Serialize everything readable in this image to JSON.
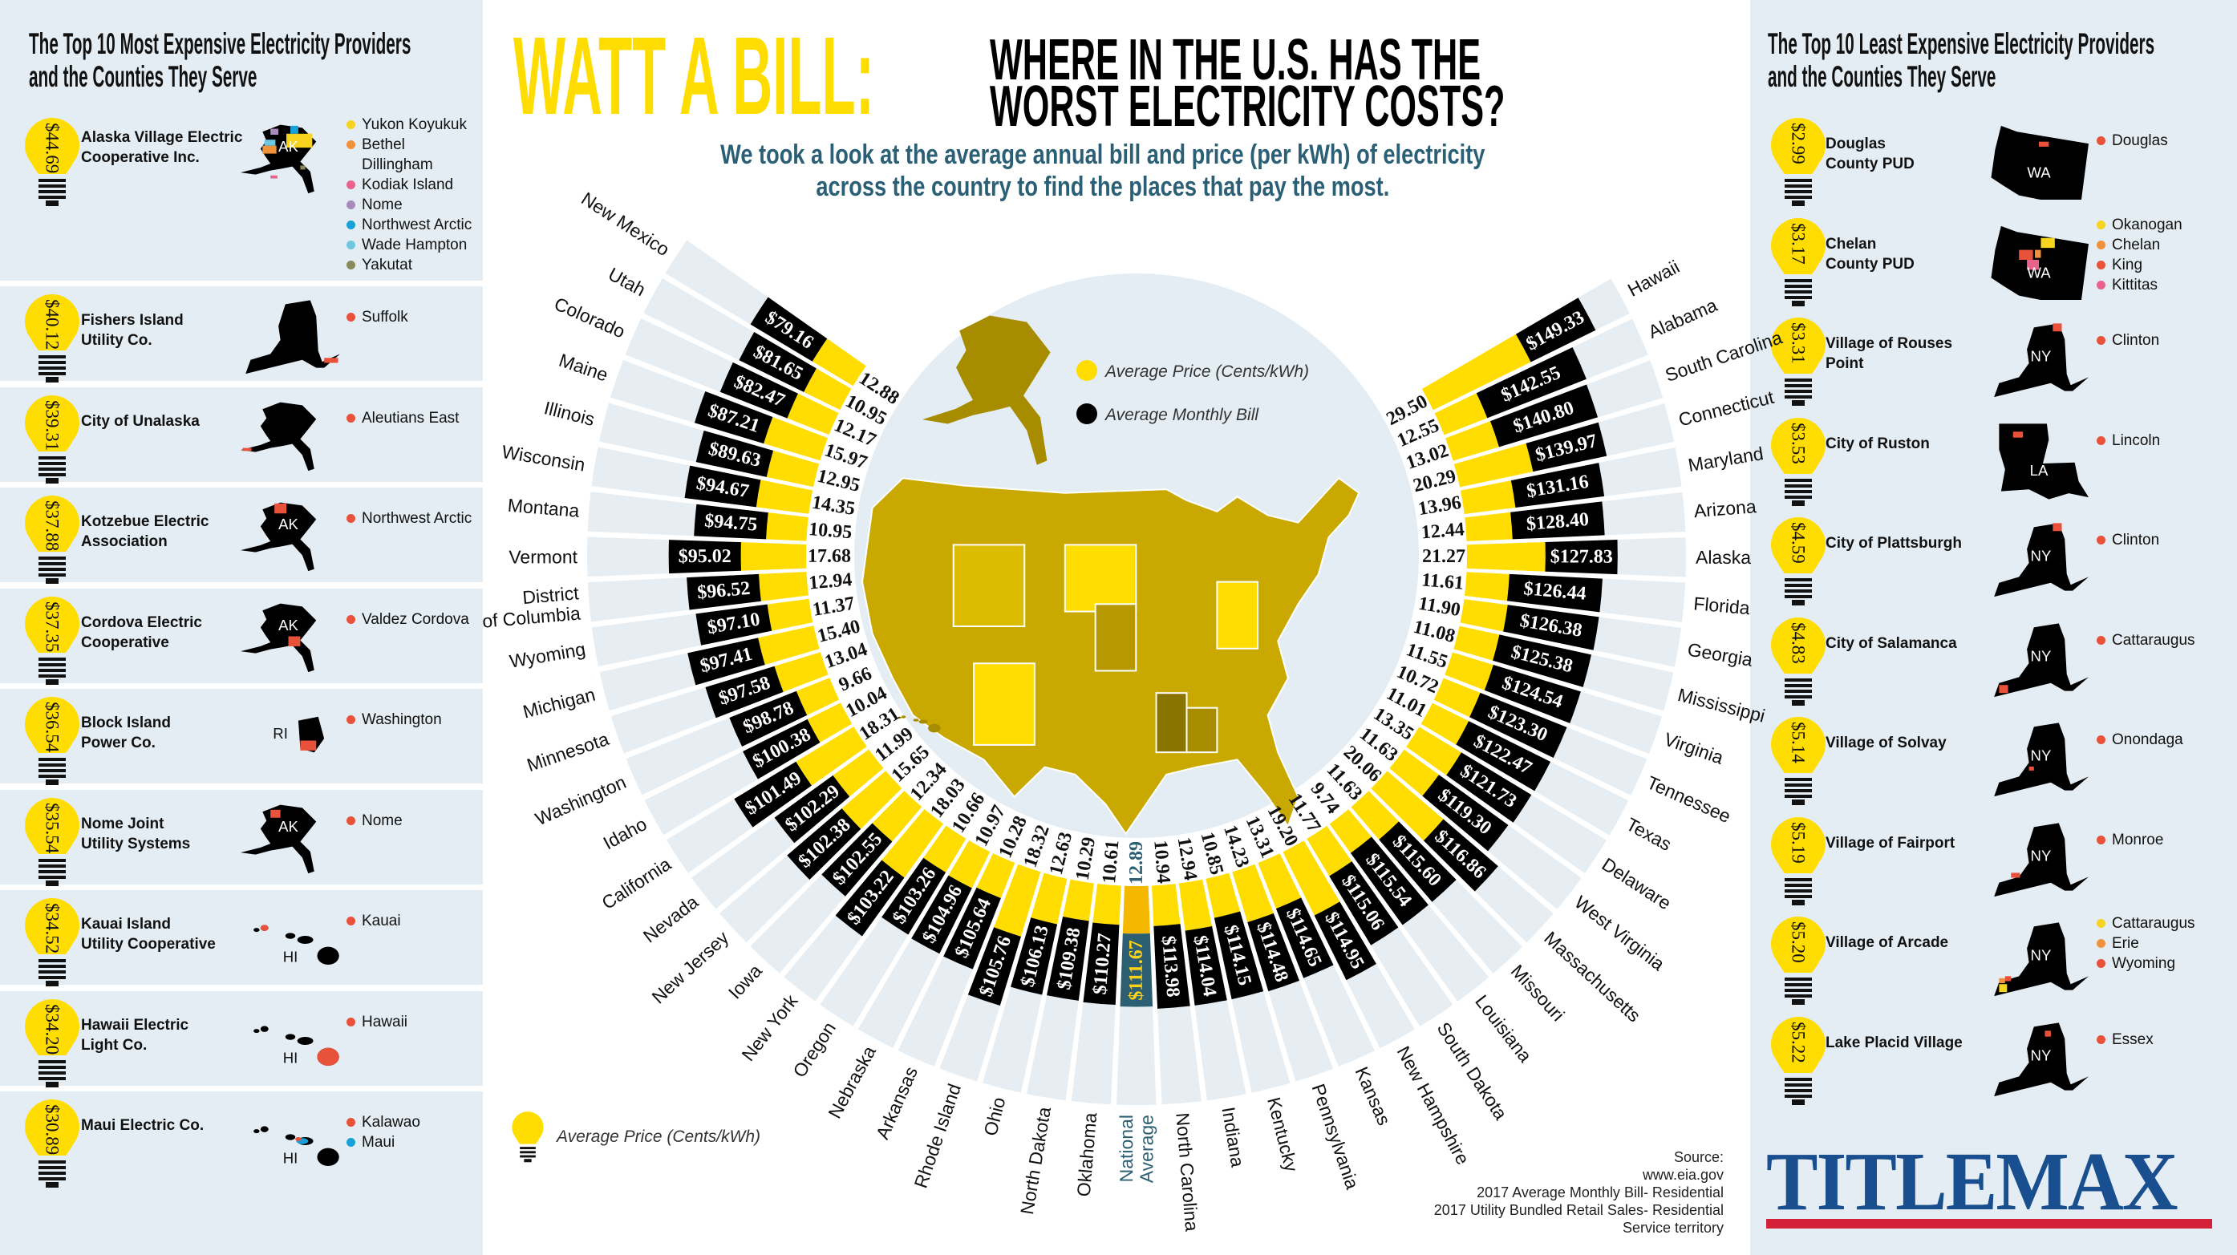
{
  "header": {
    "title_highlight": "WATT A BILL:",
    "title_line1": "WHERE IN THE U.S. HAS THE",
    "title_line2": "WORST ELECTRICITY COSTS?",
    "subtitle_line1": "We took a look at the average annual bill and price (per kWh) of electricity",
    "subtitle_line2": "across the country to find the places that pay the most."
  },
  "left_panel": {
    "title_line1": "The Top 10 Most Expensive Electricity Providers",
    "title_line2": "and the Counties They Serve",
    "providers": [
      {
        "price": "$44.69",
        "name_lines": [
          "Alaska Village Electric",
          "Cooperative Inc."
        ],
        "state": "AK",
        "map_label": "AK",
        "counties": [
          {
            "name": "Yukon Koyukuk",
            "color": "#f5d31f"
          },
          {
            "name": "Bethel\nDillingham",
            "color": "#f0913c"
          },
          {
            "name": "Kodiak Island",
            "color": "#e8638b"
          },
          {
            "name": "Nome",
            "color": "#a98bbb"
          },
          {
            "name": "Northwest Arctic",
            "color": "#1aa0d8"
          },
          {
            "name": "Wade Hampton",
            "color": "#6ec6e0"
          },
          {
            "name": "Yakutat",
            "color": "#8a8a5a"
          }
        ]
      },
      {
        "price": "$40.12",
        "name_lines": [
          "Fishers Island",
          "Utility Co."
        ],
        "state": "NY",
        "counties": [
          {
            "name": "Suffolk",
            "color": "#e8513a"
          }
        ]
      },
      {
        "price": "$39.31",
        "name_lines": [
          "City of Unalaska"
        ],
        "state": "AK",
        "counties": [
          {
            "name": "Aleutians East",
            "color": "#e8513a"
          }
        ]
      },
      {
        "price": "$37.88",
        "name_lines": [
          "Kotzebue Electric",
          "Association"
        ],
        "state": "AK",
        "map_label": "AK",
        "counties": [
          {
            "name": "Northwest Arctic",
            "color": "#e8513a"
          }
        ]
      },
      {
        "price": "$37.35",
        "name_lines": [
          "Cordova Electric",
          "Cooperative"
        ],
        "state": "AK",
        "map_label": "AK",
        "counties": [
          {
            "name": "Valdez Cordova",
            "color": "#e8513a"
          }
        ]
      },
      {
        "price": "$36.54",
        "name_lines": [
          "Block Island",
          "Power Co."
        ],
        "state": "RI",
        "map_label": "RI",
        "counties": [
          {
            "name": "Washington",
            "color": "#e8513a"
          }
        ]
      },
      {
        "price": "$35.54",
        "name_lines": [
          "Nome Joint",
          "Utility Systems"
        ],
        "state": "AK",
        "map_label": "AK",
        "counties": [
          {
            "name": "Nome",
            "color": "#e8513a"
          }
        ]
      },
      {
        "price": "$34.52",
        "name_lines": [
          "Kauai Island",
          "Utility Cooperative"
        ],
        "state": "HI",
        "map_label": "HI",
        "counties": [
          {
            "name": "Kauai",
            "color": "#e8513a"
          }
        ]
      },
      {
        "price": "$34.20",
        "name_lines": [
          "Hawaii Electric",
          "Light Co."
        ],
        "state": "HI",
        "map_label": "HI",
        "counties": [
          {
            "name": "Hawaii",
            "color": "#e8513a"
          }
        ]
      },
      {
        "price": "$30.89",
        "name_lines": [
          "Maui Electric Co."
        ],
        "state": "HI",
        "map_label": "HI",
        "counties": [
          {
            "name": "Kalawao",
            "color": "#e8513a"
          },
          {
            "name": "Maui",
            "color": "#1aa0d8"
          }
        ]
      }
    ]
  },
  "right_panel": {
    "title_line1": "The Top 10 Least Expensive Electricity Providers",
    "title_line2": "and the Counties They Serve",
    "providers": [
      {
        "price": "$2.99",
        "name_lines": [
          "Douglas",
          "County PUD"
        ],
        "state": "WA",
        "map_label": "WA",
        "counties": [
          {
            "name": "Douglas",
            "color": "#e8513a"
          }
        ]
      },
      {
        "price": "$3.17",
        "name_lines": [
          "Chelan",
          "County PUD"
        ],
        "state": "WA",
        "map_label": "WA",
        "counties": [
          {
            "name": "Okanogan",
            "color": "#f5d31f"
          },
          {
            "name": "Chelan",
            "color": "#f0913c"
          },
          {
            "name": "King",
            "color": "#e8513a"
          },
          {
            "name": "Kittitas",
            "color": "#e8638b"
          }
        ]
      },
      {
        "price": "$3.31",
        "name_lines": [
          "Village of Rouses",
          "Point"
        ],
        "state": "NY",
        "map_label": "NY",
        "counties": [
          {
            "name": "Clinton",
            "color": "#e8513a"
          }
        ]
      },
      {
        "price": "$3.53",
        "name_lines": [
          "City of Ruston"
        ],
        "state": "LA",
        "map_label": "LA",
        "counties": [
          {
            "name": "Lincoln",
            "color": "#e8513a"
          }
        ]
      },
      {
        "price": "$4.59",
        "name_lines": [
          "City of Plattsburgh"
        ],
        "state": "NY",
        "map_label": "NY",
        "counties": [
          {
            "name": "Clinton",
            "color": "#e8513a"
          }
        ]
      },
      {
        "price": "$4.83",
        "name_lines": [
          "City of Salamanca"
        ],
        "state": "NY",
        "map_label": "NY",
        "counties": [
          {
            "name": "Cattaraugus",
            "color": "#e8513a"
          }
        ]
      },
      {
        "price": "$5.14",
        "name_lines": [
          "Village of Solvay"
        ],
        "state": "NY",
        "map_label": "NY",
        "counties": [
          {
            "name": "Onondaga",
            "color": "#e8513a"
          }
        ]
      },
      {
        "price": "$5.19",
        "name_lines": [
          "Village of Fairport"
        ],
        "state": "NY",
        "map_label": "NY",
        "counties": [
          {
            "name": "Monroe",
            "color": "#e8513a"
          }
        ]
      },
      {
        "price": "$5.20",
        "name_lines": [
          "Village of Arcade"
        ],
        "state": "NY",
        "map_label": "NY",
        "counties": [
          {
            "name": "Cattaraugus",
            "color": "#f5d31f"
          },
          {
            "name": "Erie",
            "color": "#f0913c"
          },
          {
            "name": "Wyoming",
            "color": "#e8513a"
          }
        ]
      },
      {
        "price": "$5.22",
        "name_lines": [
          "Lake Placid Village"
        ],
        "state": "NY",
        "map_label": "NY",
        "counties": [
          {
            "name": "Essex",
            "color": "#e8513a"
          }
        ]
      }
    ]
  },
  "chart_data": {
    "type": "bar",
    "layout": "radial",
    "reference_category": "National Average",
    "categories": [
      "New Mexico",
      "Utah",
      "Colorado",
      "Maine",
      "Illinois",
      "Wisconsin",
      "Montana",
      "Vermont",
      "District of Columbia",
      "Wyoming",
      "Michigan",
      "Minnesota",
      "Washington",
      "Idaho",
      "California",
      "Nevada",
      "New Jersey",
      "Iowa",
      "New York",
      "Oregon",
      "Nebraska",
      "Arkansas",
      "Rhode Island",
      "Ohio",
      "North Dakota",
      "Oklahoma",
      "National Average",
      "North Carolina",
      "Indiana",
      "Kentucky",
      "Pennsylvania",
      "Kansas",
      "New Hampshire",
      "South Dakota",
      "Louisiana",
      "Missouri",
      "Massachusetts",
      "West Virginia",
      "Delaware",
      "Texas",
      "Tennessee",
      "Virginia",
      "Mississippi",
      "Georgia",
      "Florida",
      "Alaska",
      "Arizona",
      "Maryland",
      "Connecticut",
      "South Carolina",
      "Alabama",
      "Hawaii"
    ],
    "series": [
      {
        "name": "Average Price (Cents/kWh)",
        "color": "#ffdd00",
        "values": [
          12.88,
          10.95,
          12.17,
          15.97,
          12.95,
          14.35,
          10.95,
          17.68,
          12.94,
          11.37,
          15.4,
          13.04,
          9.66,
          10.04,
          18.31,
          11.99,
          15.65,
          12.34,
          18.03,
          10.66,
          10.97,
          10.28,
          18.32,
          12.63,
          10.29,
          10.61,
          12.89,
          10.94,
          12.94,
          10.85,
          14.23,
          13.31,
          19.2,
          11.77,
          9.74,
          11.63,
          20.06,
          11.63,
          13.35,
          11.01,
          10.72,
          11.55,
          11.08,
          11.9,
          11.61,
          21.27,
          12.44,
          13.96,
          20.29,
          13.02,
          12.55,
          29.5
        ]
      },
      {
        "name": "Average Monthly Bill",
        "color": "#000000",
        "values": [
          79.16,
          81.65,
          82.47,
          87.21,
          89.63,
          94.67,
          94.75,
          95.02,
          96.52,
          97.1,
          97.41,
          97.58,
          98.78,
          100.38,
          101.49,
          102.29,
          102.38,
          102.55,
          103.22,
          103.26,
          104.96,
          105.64,
          105.76,
          106.13,
          109.38,
          110.27,
          111.67,
          113.98,
          114.04,
          114.15,
          114.48,
          114.65,
          114.95,
          115.06,
          115.54,
          115.6,
          116.86,
          119.3,
          121.73,
          122.47,
          123.3,
          124.54,
          125.38,
          126.38,
          126.44,
          127.83,
          128.4,
          131.16,
          139.97,
          140.8,
          142.55,
          149.33
        ]
      }
    ],
    "reference_colors": {
      "price": "#f5b800",
      "bill": "#2d5f73",
      "label": "#2d5f73"
    },
    "legend": {
      "price_label": "Average Price (Cents/kWh)",
      "bill_label": "Average Monthly Bill"
    }
  },
  "bottom_legend": {
    "label": "Average Price (Cents/kWh)"
  },
  "source": {
    "lines": [
      "Source:",
      "www.eia.gov",
      "2017 Average Monthly Bill- Residential",
      "2017 Utility Bundled Retail Sales- Residential",
      "Service territory"
    ]
  },
  "logo": {
    "text": "TITLEMAX",
    "color": "#1a4f8f",
    "bar_color": "#d3213a"
  }
}
